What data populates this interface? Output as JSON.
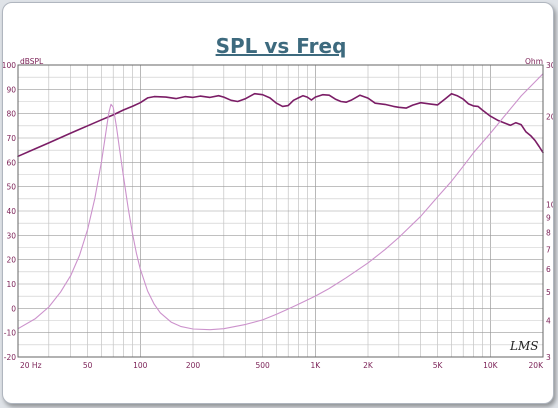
{
  "chart_data": {
    "type": "line",
    "title": "SPL vs Freq",
    "xscale": "log",
    "xlim": [
      20,
      20000
    ],
    "x_ticks": [
      {
        "v": 20,
        "label": "20 Hz"
      },
      {
        "v": 50,
        "label": "50"
      },
      {
        "v": 100,
        "label": "100"
      },
      {
        "v": 200,
        "label": "200"
      },
      {
        "v": 500,
        "label": "500"
      },
      {
        "v": 1000,
        "label": "1K"
      },
      {
        "v": 2000,
        "label": "2K"
      },
      {
        "v": 5000,
        "label": "5K"
      },
      {
        "v": 10000,
        "label": "10K"
      },
      {
        "v": 20000,
        "label": "20K"
      }
    ],
    "ylabel": "dBSPL",
    "ylim": [
      -20,
      100
    ],
    "y_ticks": [
      -20,
      -10,
      0,
      10,
      20,
      30,
      40,
      50,
      60,
      70,
      80,
      90,
      100
    ],
    "y2label": "Ohm",
    "y2scale": "log",
    "y2lim": [
      3,
      30
    ],
    "y2_ticks": [
      3,
      4,
      5,
      6,
      7,
      8,
      9,
      10,
      20,
      30
    ],
    "grid": true,
    "series": [
      {
        "color": "#7b1d66",
        "axis": "left",
        "points": [
          [
            20,
            62.5
          ],
          [
            25,
            65.5
          ],
          [
            30,
            68
          ],
          [
            40,
            72
          ],
          [
            50,
            75
          ],
          [
            60,
            77.5
          ],
          [
            70,
            79.5
          ],
          [
            80,
            81.5
          ],
          [
            90,
            83
          ],
          [
            100,
            84.5
          ],
          [
            110,
            86.5
          ],
          [
            120,
            87
          ],
          [
            140,
            86.8
          ],
          [
            160,
            86.2
          ],
          [
            180,
            87
          ],
          [
            200,
            86.7
          ],
          [
            220,
            87.2
          ],
          [
            250,
            86.7
          ],
          [
            280,
            87.4
          ],
          [
            300,
            86.8
          ],
          [
            330,
            85.5
          ],
          [
            360,
            85
          ],
          [
            400,
            86.2
          ],
          [
            450,
            88.2
          ],
          [
            500,
            87.8
          ],
          [
            550,
            86.5
          ],
          [
            600,
            84.3
          ],
          [
            650,
            83
          ],
          [
            700,
            83.3
          ],
          [
            750,
            85.5
          ],
          [
            800,
            86.5
          ],
          [
            850,
            87.4
          ],
          [
            900,
            86.8
          ],
          [
            950,
            85.6
          ],
          [
            1000,
            86.8
          ],
          [
            1100,
            87.8
          ],
          [
            1200,
            87.6
          ],
          [
            1300,
            86
          ],
          [
            1400,
            85
          ],
          [
            1500,
            84.7
          ],
          [
            1600,
            85.5
          ],
          [
            1800,
            87.6
          ],
          [
            2000,
            86.4
          ],
          [
            2200,
            84.3
          ],
          [
            2500,
            83.8
          ],
          [
            2800,
            83
          ],
          [
            3000,
            82.6
          ],
          [
            3300,
            82.3
          ],
          [
            3600,
            83.5
          ],
          [
            4000,
            84.5
          ],
          [
            4500,
            84
          ],
          [
            5000,
            83.6
          ],
          [
            5500,
            86
          ],
          [
            6000,
            88.2
          ],
          [
            6500,
            87.3
          ],
          [
            7000,
            86
          ],
          [
            7500,
            84
          ],
          [
            8000,
            83.2
          ],
          [
            8500,
            83
          ],
          [
            9000,
            81.5
          ],
          [
            10000,
            79
          ],
          [
            11000,
            77.3
          ],
          [
            12000,
            76.2
          ],
          [
            13000,
            75.2
          ],
          [
            14000,
            76.3
          ],
          [
            15000,
            75.5
          ],
          [
            16000,
            72.5
          ],
          [
            17000,
            71
          ],
          [
            18000,
            69
          ],
          [
            19000,
            66.5
          ],
          [
            20000,
            64
          ]
        ]
      },
      {
        "color": "#cc92cc",
        "axis": "right",
        "points": [
          [
            20,
            3.75
          ],
          [
            25,
            4.05
          ],
          [
            30,
            4.45
          ],
          [
            35,
            5.0
          ],
          [
            40,
            5.7
          ],
          [
            45,
            6.7
          ],
          [
            50,
            8.2
          ],
          [
            55,
            10.5
          ],
          [
            60,
            14
          ],
          [
            63,
            17
          ],
          [
            66,
            20.5
          ],
          [
            68,
            22
          ],
          [
            70,
            21.5
          ],
          [
            73,
            18.5
          ],
          [
            76,
            15.5
          ],
          [
            80,
            12.5
          ],
          [
            85,
            9.8
          ],
          [
            90,
            8.0
          ],
          [
            95,
            6.8
          ],
          [
            100,
            6.0
          ],
          [
            110,
            5.05
          ],
          [
            120,
            4.55
          ],
          [
            130,
            4.25
          ],
          [
            150,
            3.95
          ],
          [
            170,
            3.82
          ],
          [
            200,
            3.74
          ],
          [
            250,
            3.72
          ],
          [
            300,
            3.75
          ],
          [
            400,
            3.88
          ],
          [
            500,
            4.02
          ],
          [
            600,
            4.2
          ],
          [
            700,
            4.38
          ],
          [
            800,
            4.55
          ],
          [
            1000,
            4.85
          ],
          [
            1200,
            5.15
          ],
          [
            1500,
            5.6
          ],
          [
            2000,
            6.3
          ],
          [
            2500,
            7.0
          ],
          [
            3000,
            7.7
          ],
          [
            4000,
            9.1
          ],
          [
            5000,
            10.6
          ],
          [
            6000,
            12.0
          ],
          [
            7000,
            13.5
          ],
          [
            8000,
            15
          ],
          [
            10000,
            17.5
          ],
          [
            12000,
            20
          ],
          [
            15000,
            23.5
          ],
          [
            20000,
            28
          ]
        ]
      }
    ],
    "watermark": "LMS"
  }
}
